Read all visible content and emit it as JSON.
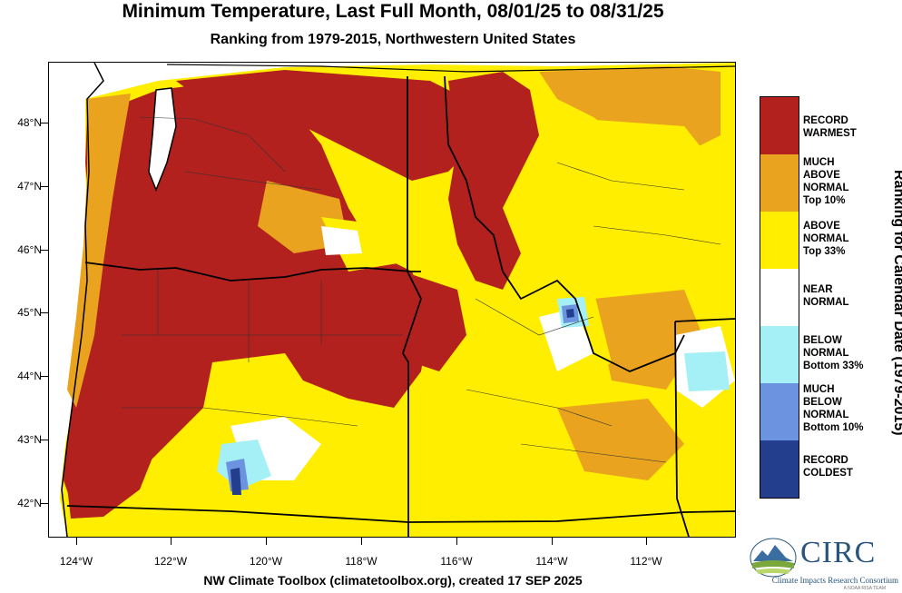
{
  "title": "Minimum Temperature, Last Full Month, 08/01/25 to 08/31/25",
  "subtitle": "Ranking from 1979-2015, Northwestern United States",
  "credit": "NW Climate Toolbox (climatetoolbox.org), created 17 SEP 2025",
  "map": {
    "lat_ticks": [
      "48°N",
      "47°N",
      "46°N",
      "45°N",
      "44°N",
      "43°N",
      "42°N"
    ],
    "lon_ticks": [
      "124°W",
      "122°W",
      "120°W",
      "118°W",
      "116°W",
      "114°W",
      "112°W"
    ],
    "region_colors": {
      "record_warmest": "#b2211e",
      "much_above": "#e9a31e",
      "above": "#ffee00",
      "near": "#ffffff",
      "below": "#a4f0f6",
      "much_below": "#6b93e0",
      "record_coldest": "#233e8c"
    }
  },
  "legend": {
    "title": "Ranking for Calendar Date (1979-2015)",
    "items": [
      {
        "label": "RECORD\nWARMEST",
        "color": "#b2211e"
      },
      {
        "label": "MUCH\nABOVE\nNORMAL\nTop 10%",
        "color": "#e9a31e"
      },
      {
        "label": "ABOVE\nNORMAL\nTop 33%",
        "color": "#ffee00"
      },
      {
        "label": "NEAR\nNORMAL",
        "color": "#ffffff"
      },
      {
        "label": "BELOW\nNORMAL\nBottom 33%",
        "color": "#a4f0f6"
      },
      {
        "label": "MUCH\nBELOW\nNORMAL\nBottom 10%",
        "color": "#6b93e0"
      },
      {
        "label": "RECORD\nCOLDEST",
        "color": "#233e8c"
      }
    ]
  },
  "logo": {
    "name": "CIRC",
    "subtitle": "Climate Impacts Research Consortium",
    "tagline": "A NOAA RISA TEAM",
    "icon": "mountain-landscape-icon"
  }
}
